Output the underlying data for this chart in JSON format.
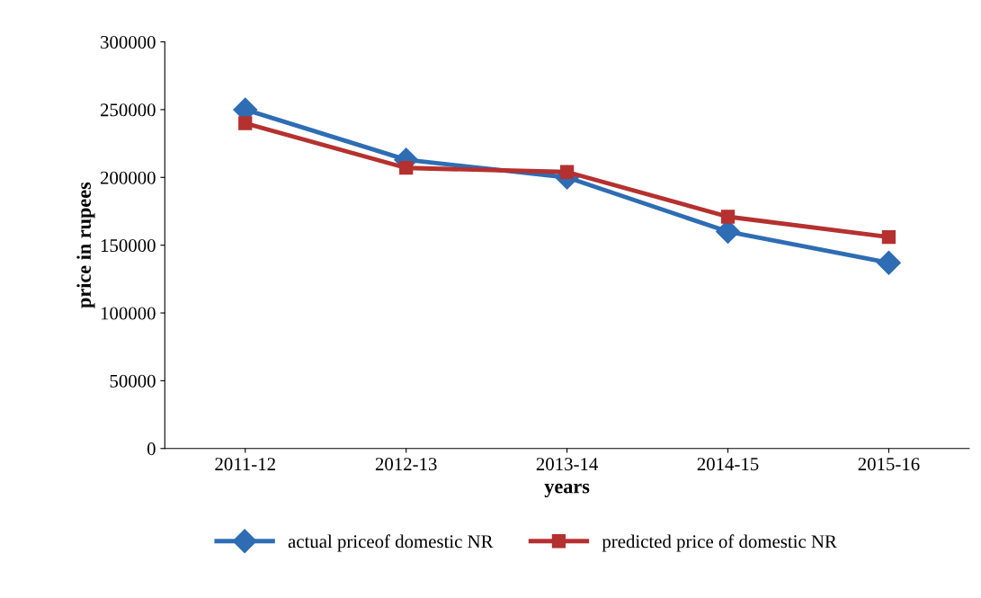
{
  "chart_data": {
    "type": "line",
    "xlabel": "years",
    "ylabel": "price in rupees",
    "categories": [
      "2011-12",
      "2012-13",
      "2013-14",
      "2014-15",
      "2015-16"
    ],
    "series": [
      {
        "name": "actual priceof domestic NR",
        "color": "#2e6db4",
        "marker": "diamond",
        "values": [
          250000,
          213000,
          200000,
          160000,
          137000
        ]
      },
      {
        "name": "predicted price of domestic NR",
        "color": "#b5312f",
        "marker": "square",
        "values": [
          240000,
          207000,
          204000,
          171000,
          156000
        ]
      }
    ],
    "ylim": [
      0,
      300000
    ],
    "yticks": [
      0,
      50000,
      100000,
      150000,
      200000,
      250000,
      300000
    ],
    "grid": false,
    "legend": "bottom",
    "line_style": "solid"
  }
}
